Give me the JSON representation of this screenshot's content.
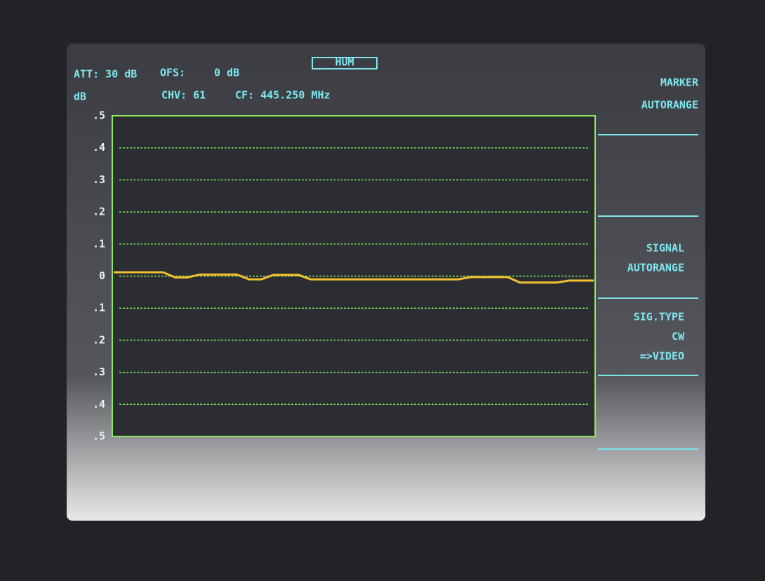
{
  "header": {
    "mode": "HUM",
    "att": "ATT: 30 dB",
    "ofs": "OFS:",
    "ofs_value": "0 dB",
    "unit": "dB",
    "chv": "CHV: 61",
    "cf": "CF: 445.250 MHz"
  },
  "softkeys": [
    [
      "MARKER",
      "AUTORANGE"
    ],
    [
      "SIGNAL",
      "AUTORANGE"
    ],
    [
      "SIG.TYPE",
      "CW",
      "=>VIDEO"
    ]
  ],
  "chart_data": {
    "type": "line",
    "ylim": [
      -0.5,
      0.5
    ],
    "yticks": [
      {
        "value": 0.5,
        "label": ".5"
      },
      {
        "value": 0.4,
        "label": ".4"
      },
      {
        "value": 0.3,
        "label": ".3"
      },
      {
        "value": 0.2,
        "label": ".2"
      },
      {
        "value": 0.1,
        "label": ".1"
      },
      0,
      {
        "value": -0.1,
        "label": ".1"
      },
      {
        "value": -0.2,
        "label": ".2"
      },
      {
        "value": -0.3,
        "label": ".3"
      },
      {
        "value": -0.4,
        "label": ".4"
      },
      {
        "value": -0.5,
        "label": ".5"
      }
    ],
    "grid": true,
    "grid_color": "#7fe05a",
    "frame_color": "#8ee860",
    "series": [
      {
        "color": "#f3c030",
        "values": [
          0.012,
          0.012,
          0.012,
          0.012,
          0.012,
          -0.004,
          -0.004,
          0.005,
          0.005,
          0.005,
          0.005,
          -0.01,
          -0.01,
          0.004,
          0.004,
          0.004,
          -0.01,
          -0.01,
          -0.01,
          -0.01,
          -0.01,
          -0.01,
          -0.01,
          -0.01,
          -0.01,
          -0.01,
          -0.01,
          -0.01,
          -0.01,
          -0.003,
          -0.003,
          -0.003,
          -0.003,
          -0.02,
          -0.02,
          -0.02,
          -0.02,
          -0.014,
          -0.014,
          -0.014
        ]
      }
    ]
  }
}
